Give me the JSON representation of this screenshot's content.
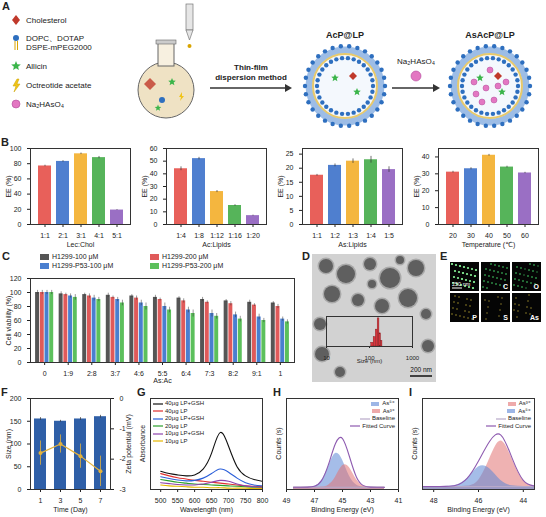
{
  "schematic": {
    "panel": "A",
    "legend_items": [
      "Cholesterol",
      "DOPC、DOTAP",
      "DSPE-mPEG2000",
      "Allicin",
      "Octreotide acetate",
      "Na₂HAsO₄"
    ],
    "method": "Thin-film dispersion method",
    "product_1": "AcP@LP",
    "reagent": "Na₂HAsO₄",
    "product_2": "AsAcP@LP"
  },
  "tem_image": {
    "panel": "D",
    "scale_bar": "200 nm"
  },
  "eds_mapping": {
    "panel": "E",
    "scale_bar": "250 nm",
    "maps": [
      "C",
      "O",
      "P",
      "S",
      "As"
    ]
  },
  "chart_data": [
    {
      "panel": "B",
      "type": "bar",
      "xlabel": "Lec:Chol",
      "ylabel": "EE (%)",
      "categories": [
        "1:1",
        "2:1",
        "3:1",
        "4:1",
        "5:1"
      ],
      "values": [
        77,
        83,
        93,
        88,
        19
      ],
      "errors": [
        1,
        1,
        1,
        1.5,
        0.5
      ],
      "colors": [
        "#e8605a",
        "#4f7fcf",
        "#f4b63f",
        "#56b45a",
        "#9a6fc4"
      ],
      "ylim": [
        0,
        100
      ],
      "yticks": [
        0,
        20,
        40,
        60,
        80,
        100
      ]
    },
    {
      "type": "bar",
      "xlabel": "Ac:Lipids",
      "ylabel": "EE (%)",
      "categories": [
        "1:4",
        "1:8",
        "1:12",
        "1:16",
        "1:20"
      ],
      "values": [
        44,
        52,
        26,
        15,
        7
      ],
      "errors": [
        1.5,
        1,
        0.8,
        0.6,
        0.4
      ],
      "colors": [
        "#e8605a",
        "#4f7fcf",
        "#f4b63f",
        "#56b45a",
        "#9a6fc4"
      ],
      "ylim": [
        0,
        60
      ],
      "yticks": [
        0,
        10,
        20,
        30,
        40,
        50,
        60
      ]
    },
    {
      "type": "bar",
      "xlabel": "As:Lipids",
      "ylabel": "EE (%)",
      "categories": [
        "1:1",
        "1:2",
        "1:3",
        "1:4",
        "1:5"
      ],
      "values": [
        17.5,
        21,
        22.5,
        23,
        19.5
      ],
      "errors": [
        0.3,
        0.5,
        0.8,
        1.2,
        1
      ],
      "colors": [
        "#e8605a",
        "#4f7fcf",
        "#f4b63f",
        "#56b45a",
        "#9a6fc4"
      ],
      "ylim": [
        0,
        27
      ],
      "yticks": [
        0,
        5,
        10,
        15,
        20,
        25
      ]
    },
    {
      "type": "bar",
      "xlabel": "Temperature (℃)",
      "ylabel": "EE (%)",
      "categories": [
        "20",
        "30",
        "40",
        "50",
        "60"
      ],
      "values": [
        31,
        33,
        41,
        34,
        30.5
      ],
      "errors": [
        0.5,
        0.6,
        0.5,
        0.5,
        0.4
      ],
      "colors": [
        "#e8605a",
        "#4f7fcf",
        "#f4b63f",
        "#56b45a",
        "#9a6fc4"
      ],
      "ylim": [
        0,
        45
      ],
      "yticks": [
        0,
        10,
        20,
        30,
        40
      ]
    },
    {
      "panel": "C",
      "type": "bar",
      "xlabel": "As:Ac",
      "ylabel": "Cell viability (%)",
      "categories": [
        "0",
        "1:9",
        "2:8",
        "3:7",
        "4:6",
        "5:5",
        "6:4",
        "7:3",
        "8:2",
        "9:1",
        "1"
      ],
      "series": [
        {
          "name": "H1299-100 μM",
          "color": "#555555",
          "values": [
            100,
            98,
            97,
            96,
            95,
            93,
            92,
            90,
            88,
            86,
            85
          ],
          "errors": [
            3,
            3,
            2,
            3,
            2,
            3,
            2,
            3,
            2,
            3,
            2
          ]
        },
        {
          "name": "H1299-200 μM",
          "color": "#e05a5a",
          "values": [
            100,
            97,
            95,
            93,
            92,
            90,
            88,
            86,
            84,
            82,
            80
          ],
          "errors": [
            3,
            2,
            3,
            2,
            3,
            2,
            3,
            2,
            3,
            2,
            3
          ]
        },
        {
          "name": "H1299-P53-100 μM",
          "color": "#4a7fd0",
          "values": [
            100,
            95,
            92,
            90,
            85,
            80,
            75,
            70,
            68,
            65,
            62
          ],
          "errors": [
            3,
            3,
            4,
            3,
            4,
            5,
            4,
            5,
            4,
            4,
            3
          ]
        },
        {
          "name": "H1299-P53-200 μM",
          "color": "#5cc05c",
          "values": [
            100,
            93,
            90,
            85,
            80,
            75,
            70,
            66,
            62,
            60,
            58
          ],
          "errors": [
            3,
            4,
            3,
            4,
            5,
            4,
            5,
            4,
            4,
            3,
            3
          ]
        }
      ],
      "ylim": [
        0,
        120
      ],
      "yticks": [
        0,
        20,
        40,
        60,
        80,
        100,
        120
      ],
      "legend": "top"
    },
    {
      "type": "histogram",
      "xlabel": "Size (nm)",
      "bins": [
        110,
        125,
        140,
        155,
        170,
        185,
        200
      ],
      "values": [
        4,
        10,
        18,
        30,
        14,
        6
      ],
      "color": "#d9363e",
      "xlim": [
        10,
        1000
      ],
      "xticks": [
        10,
        100,
        1000
      ],
      "ylim": [
        0,
        32
      ],
      "log": "x",
      "tick_labels": "x"
    },
    {
      "panel": "F",
      "type": "bar",
      "xlabel": "Time (Day)",
      "ylabel": "Size (nm)",
      "y2label": "Zeta potential (mV)",
      "categories": [
        "1",
        "3",
        "5",
        "7"
      ],
      "series": [
        {
          "type": "bar",
          "color": "#2f5fa7",
          "values": [
            155,
            150,
            155,
            160
          ],
          "errors": [
            3,
            2,
            3,
            3
          ]
        },
        {
          "type": "line",
          "axis": "y2",
          "color": "#e3b23c",
          "marker": "circle",
          "values": [
            -1.8,
            -1.5,
            -1.9,
            -2.4
          ],
          "errors": [
            0.4,
            0.3,
            0.4,
            0.5
          ]
        }
      ],
      "ylim": [
        0,
        200
      ],
      "yticks": [
        0,
        50,
        100,
        150,
        200
      ],
      "y2lim": [
        -3,
        0
      ],
      "y2ticks": [
        -3,
        -2,
        -1,
        0
      ]
    },
    {
      "panel": "G",
      "type": "line",
      "xlabel": "Wavelength (nm)",
      "ylabel": "Absorbance",
      "x": [
        500,
        525,
        550,
        575,
        600,
        625,
        650,
        675,
        700,
        725,
        750,
        775,
        800
      ],
      "series": [
        {
          "name": "40μg LP+GSH",
          "color": "#111111",
          "values": [
            0.04,
            0.035,
            0.032,
            0.03,
            0.032,
            0.045,
            0.08,
            0.125,
            0.095,
            0.05,
            0.03,
            0.022,
            0.018
          ]
        },
        {
          "name": "40μg LP",
          "color": "#e03030",
          "values": [
            0.035,
            0.03,
            0.026,
            0.023,
            0.02,
            0.018,
            0.016,
            0.014,
            0.012,
            0.01,
            0.008,
            0.007,
            0.006
          ]
        },
        {
          "name": "20μg LP+GSH",
          "color": "#2b5fd9",
          "values": [
            0.028,
            0.024,
            0.021,
            0.019,
            0.02,
            0.025,
            0.035,
            0.045,
            0.038,
            0.025,
            0.015,
            0.01,
            0.008
          ]
        },
        {
          "name": "20μg LP",
          "color": "#2ca02c",
          "values": [
            0.022,
            0.019,
            0.016,
            0.014,
            0.012,
            0.011,
            0.01,
            0.009,
            0.008,
            0.007,
            0.006,
            0.005,
            0.005
          ]
        },
        {
          "name": "10μg LP+GSH",
          "color": "#8e44ad",
          "values": [
            0.015,
            0.013,
            0.011,
            0.01,
            0.01,
            0.012,
            0.016,
            0.02,
            0.018,
            0.012,
            0.008,
            0.006,
            0.005
          ]
        },
        {
          "name": "10μg LP",
          "color": "#e6b800",
          "values": [
            0.01,
            0.008,
            0.007,
            0.006,
            0.005,
            0.005,
            0.004,
            0.004,
            0.003,
            0.003,
            0.003,
            0.002,
            0.002
          ]
        }
      ],
      "xlim": [
        470,
        800
      ],
      "xticks": [
        500,
        550,
        600,
        650,
        700,
        750,
        800
      ],
      "ylim": [
        0,
        0.2
      ],
      "tick_labels": "x",
      "legend": "top-left"
    },
    {
      "panel": "H",
      "type": "line",
      "xlabel": "Binding Energy (eV)",
      "ylabel": "Counts (s)",
      "x": [
        48.5,
        48,
        47.5,
        47,
        46.5,
        46,
        45.5,
        45,
        44.5,
        44,
        43.5,
        43,
        42.5,
        42
      ],
      "series": [
        {
          "name": "As⁵⁺",
          "type": "area",
          "color": "#5b86d6",
          "values": [
            0.05,
            0.05,
            0.052,
            0.071,
            0.19,
            0.505,
            0.79,
            0.65,
            0.29,
            0.1,
            0.055,
            0.05,
            0.05,
            0.05
          ]
        },
        {
          "name": "As³⁺",
          "type": "area",
          "color": "#e27272",
          "values": [
            0.05,
            0.05,
            0.05,
            0.05,
            0.054,
            0.096,
            0.27,
            0.52,
            0.48,
            0.22,
            0.08,
            0.052,
            0.05,
            0.05
          ]
        },
        {
          "name": "Baseline",
          "type": "line",
          "color": "#b8a9c9",
          "values": [
            0.05,
            0.05,
            0.05,
            0.05,
            0.05,
            0.05,
            0.05,
            0.05,
            0.05,
            0.05,
            0.05,
            0.05,
            0.05,
            0.05
          ]
        },
        {
          "name": "Fitted Curve",
          "type": "line",
          "color": "#8e5bb0",
          "values": [
            0.05,
            0.05,
            0.052,
            0.071,
            0.194,
            0.551,
            1.01,
            1.12,
            0.72,
            0.27,
            0.085,
            0.052,
            0.05,
            0.05
          ]
        }
      ],
      "xlim": [
        49,
        41
      ],
      "xticks": [
        49,
        47,
        45,
        43,
        41
      ],
      "ylim": [
        0,
        2.0
      ],
      "tick_labels": "x",
      "legend": "top-right"
    },
    {
      "panel": "I",
      "type": "line",
      "xlabel": "Binding Energy (eV)",
      "ylabel": "Counts (s)",
      "x": [
        48.5,
        48,
        47.5,
        47,
        46.5,
        46,
        45.5,
        45,
        44.5,
        44,
        43.5
      ],
      "series": [
        {
          "name": "As³⁺",
          "type": "area",
          "color": "#e27272",
          "values": [
            0.05,
            0.05,
            0.05,
            0.05,
            0.058,
            0.15,
            0.505,
            0.8,
            0.505,
            0.15,
            0.058
          ]
        },
        {
          "name": "As⁵⁺",
          "type": "area",
          "color": "#5b86d6",
          "values": [
            0.05,
            0.05,
            0.051,
            0.07,
            0.18,
            0.37,
            0.34,
            0.147,
            0.062,
            0.05,
            0.05
          ]
        },
        {
          "name": "Baseline",
          "type": "line",
          "color": "#b8a9c9",
          "values": [
            0.05,
            0.05,
            0.05,
            0.05,
            0.05,
            0.05,
            0.05,
            0.05,
            0.05,
            0.05,
            0.05
          ]
        },
        {
          "name": "Fitted Curve",
          "type": "line",
          "color": "#8e5bb0",
          "values": [
            0.05,
            0.05,
            0.051,
            0.07,
            0.188,
            0.47,
            0.795,
            0.897,
            0.517,
            0.15,
            0.058
          ]
        }
      ],
      "xlim": [
        48.5,
        43.5
      ],
      "xticks": [
        48,
        46,
        44
      ],
      "ylim": [
        0,
        1.5
      ],
      "tick_labels": "x",
      "legend": "top-right"
    }
  ]
}
